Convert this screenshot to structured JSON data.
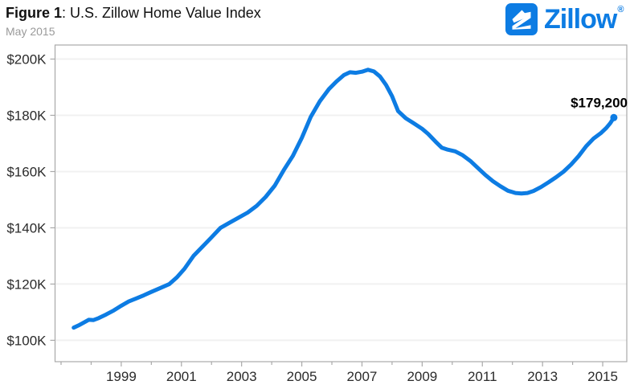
{
  "header": {
    "figure_label": "Figure 1",
    "title_rest": ": U.S. Zillow Home Value Index",
    "subtitle": "May 2015"
  },
  "logo": {
    "brand": "Zillow",
    "registered": "®",
    "color": "#0d7ce3"
  },
  "chart_data": {
    "type": "line",
    "title": "Figure 1: U.S. Zillow Home Value Index",
    "subtitle": "May 2015",
    "xlabel": "",
    "ylabel": "",
    "legend": "none",
    "grid": "horizontal-only",
    "colors": {
      "line": "#0d7ce3",
      "grid": "#f1f1f1",
      "axis": "#a9a9a9",
      "text": "#2b2b2b",
      "annotation": "#000000"
    },
    "x_axis": {
      "range": [
        1996.8,
        2015.8
      ],
      "tick_years": [
        1997,
        1998,
        1999,
        2000,
        2001,
        2002,
        2003,
        2004,
        2005,
        2006,
        2007,
        2008,
        2009,
        2010,
        2011,
        2012,
        2013,
        2014,
        2015
      ],
      "label_years": [
        1999,
        2001,
        2003,
        2005,
        2007,
        2009,
        2011,
        2013,
        2015
      ],
      "tick_labels": [
        "1999",
        "2001",
        "2003",
        "2005",
        "2007",
        "2009",
        "2011",
        "2013",
        "2015"
      ]
    },
    "y_axis": {
      "range": [
        92.4,
        205
      ],
      "ticks": [
        100,
        120,
        140,
        160,
        180,
        200
      ],
      "tick_labels": [
        "$100K",
        "$120K",
        "$140K",
        "$160K",
        "$180K",
        "$200K"
      ],
      "unit": "USD thousands"
    },
    "series": [
      {
        "name": "U.S. Zillow Home Value Index (ZHVI)",
        "color": "#0d7ce3",
        "points": [
          [
            1997.42,
            104.5
          ],
          [
            1997.58,
            105.3
          ],
          [
            1997.75,
            106.3
          ],
          [
            1997.92,
            107.3
          ],
          [
            1998.08,
            107.2
          ],
          [
            1998.25,
            107.9
          ],
          [
            1998.5,
            109.2
          ],
          [
            1998.75,
            110.6
          ],
          [
            1999.0,
            112.3
          ],
          [
            1999.25,
            113.8
          ],
          [
            1999.5,
            114.9
          ],
          [
            1999.75,
            116.0
          ],
          [
            2000.0,
            117.2
          ],
          [
            2000.3,
            118.6
          ],
          [
            2000.6,
            120.0
          ],
          [
            2000.85,
            122.4
          ],
          [
            2001.1,
            125.4
          ],
          [
            2001.4,
            130.0
          ],
          [
            2001.7,
            133.3
          ],
          [
            2002.0,
            136.6
          ],
          [
            2002.3,
            140.0
          ],
          [
            2002.6,
            141.8
          ],
          [
            2002.9,
            143.6
          ],
          [
            2003.2,
            145.4
          ],
          [
            2003.5,
            147.8
          ],
          [
            2003.8,
            151.0
          ],
          [
            2004.1,
            155.0
          ],
          [
            2004.4,
            160.5
          ],
          [
            2004.7,
            165.5
          ],
          [
            2005.0,
            172.0
          ],
          [
            2005.3,
            179.5
          ],
          [
            2005.6,
            185.0
          ],
          [
            2005.9,
            189.3
          ],
          [
            2006.15,
            192.0
          ],
          [
            2006.4,
            194.3
          ],
          [
            2006.6,
            195.3
          ],
          [
            2006.8,
            195.1
          ],
          [
            2007.0,
            195.5
          ],
          [
            2007.2,
            196.2
          ],
          [
            2007.4,
            195.6
          ],
          [
            2007.6,
            193.8
          ],
          [
            2007.8,
            190.8
          ],
          [
            2008.0,
            186.8
          ],
          [
            2008.2,
            181.5
          ],
          [
            2008.45,
            179.0
          ],
          [
            2008.7,
            177.3
          ],
          [
            2009.0,
            175.2
          ],
          [
            2009.2,
            173.4
          ],
          [
            2009.45,
            170.6
          ],
          [
            2009.65,
            168.5
          ],
          [
            2009.85,
            167.8
          ],
          [
            2010.1,
            167.2
          ],
          [
            2010.35,
            165.8
          ],
          [
            2010.6,
            163.8
          ],
          [
            2010.85,
            161.3
          ],
          [
            2011.1,
            158.8
          ],
          [
            2011.35,
            156.6
          ],
          [
            2011.6,
            154.8
          ],
          [
            2011.85,
            153.2
          ],
          [
            2012.1,
            152.4
          ],
          [
            2012.3,
            152.2
          ],
          [
            2012.5,
            152.4
          ],
          [
            2012.7,
            153.1
          ],
          [
            2012.95,
            154.5
          ],
          [
            2013.2,
            156.2
          ],
          [
            2013.45,
            158.0
          ],
          [
            2013.7,
            160.0
          ],
          [
            2013.95,
            162.5
          ],
          [
            2014.2,
            165.5
          ],
          [
            2014.45,
            169.0
          ],
          [
            2014.7,
            171.8
          ],
          [
            2014.95,
            173.8
          ],
          [
            2015.12,
            175.5
          ],
          [
            2015.25,
            177.2
          ],
          [
            2015.37,
            179.2
          ]
        ]
      }
    ],
    "annotation": {
      "text": "$179,200",
      "x": 2015.37,
      "y": 179.2
    },
    "end_dot": true
  }
}
